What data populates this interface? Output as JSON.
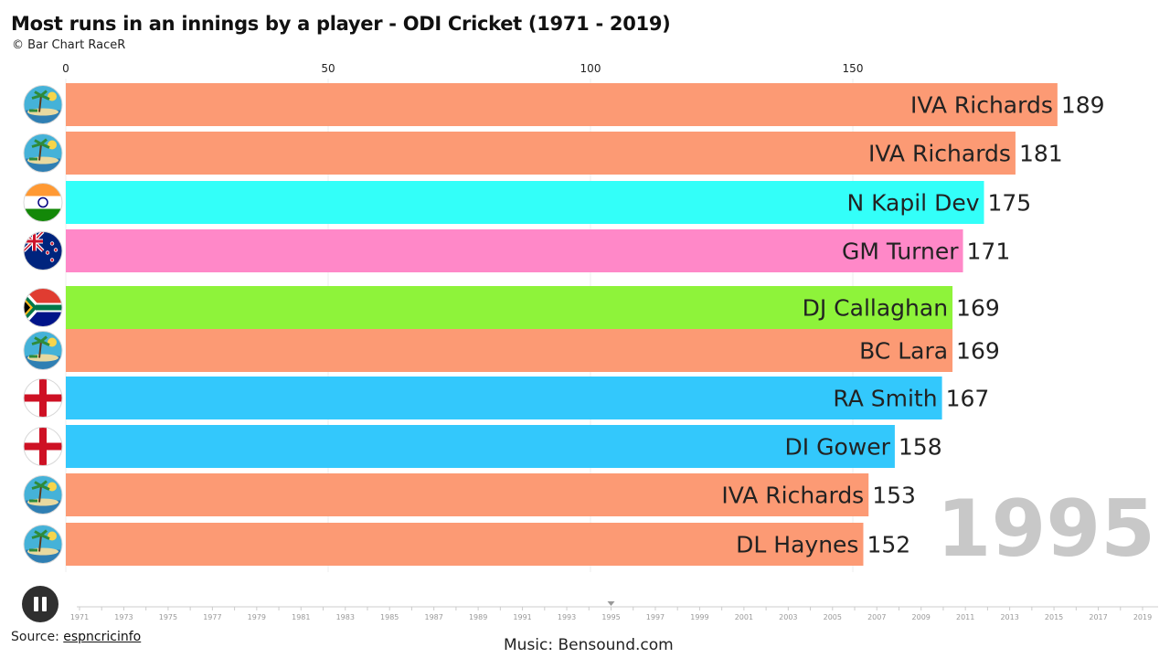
{
  "title": "Most runs in an innings by a player - ODI Cricket (1971 - 2019)",
  "subtitle": "© Bar Chart RaceR",
  "source_prefix": "Source: ",
  "source_link": "espncricinfo",
  "music": "Music: Bensound.com",
  "controls": {
    "play_state": "playing",
    "play_icon": "pause-icon"
  },
  "chart_data": {
    "type": "bar",
    "orientation": "horizontal",
    "current_year": "1995",
    "xlim": [
      0,
      189
    ],
    "x_ticks": [
      0,
      50,
      100,
      150
    ],
    "grid": true,
    "bars": [
      {
        "name": "IVA Richards",
        "value": 189,
        "color": "#fc9a74",
        "flag": "west-indies-flag-icon"
      },
      {
        "name": "IVA Richards",
        "value": 181,
        "color": "#fc9a74",
        "flag": "west-indies-flag-icon"
      },
      {
        "name": "N Kapil Dev",
        "value": 175,
        "color": "#33fff9",
        "flag": "india-flag-icon"
      },
      {
        "name": "GM Turner",
        "value": 171,
        "color": "#ff88c8",
        "flag": "new-zealand-flag-icon"
      },
      {
        "name": "DJ Callaghan",
        "value": 169,
        "color": "#8ef33a",
        "flag": "south-africa-flag-icon"
      },
      {
        "name": "BC Lara",
        "value": 169,
        "color": "#fc9a74",
        "flag": "west-indies-flag-icon"
      },
      {
        "name": "RA Smith",
        "value": 167,
        "color": "#33c8fc",
        "flag": "england-flag-icon"
      },
      {
        "name": "DI Gower",
        "value": 158,
        "color": "#33c8fc",
        "flag": "england-flag-icon"
      },
      {
        "name": "IVA Richards",
        "value": 153,
        "color": "#fc9a74",
        "flag": "west-indies-flag-icon"
      },
      {
        "name": "DL Haynes",
        "value": 152,
        "color": "#fc9a74",
        "flag": "west-indies-flag-icon"
      }
    ],
    "timeline": {
      "years": [
        "1971",
        "1973",
        "1975",
        "1977",
        "1979",
        "1981",
        "1983",
        "1985",
        "1987",
        "1989",
        "1991",
        "1993",
        "1995",
        "1997",
        "1999",
        "2001",
        "2003",
        "2005",
        "2007",
        "2009",
        "2011",
        "2013",
        "2015",
        "2017",
        "2019"
      ],
      "current": "1995",
      "range": [
        1971,
        2019
      ]
    }
  }
}
